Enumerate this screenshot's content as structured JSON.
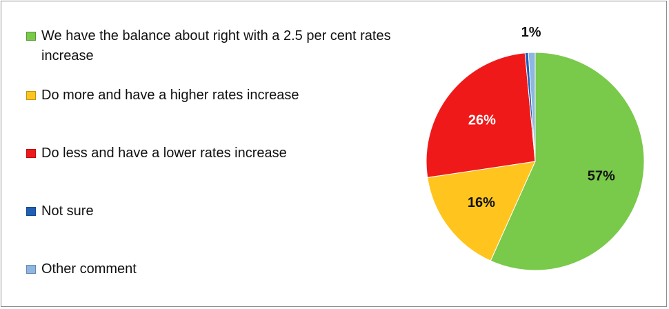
{
  "chart_data": {
    "type": "pie",
    "title": "",
    "legend_position": "left",
    "slices": [
      {
        "label": "We have the balance about right with a 2.5 per cent rates increase",
        "value": 57,
        "value_label": "57%",
        "color": "#79C94A",
        "label_color": "#111111"
      },
      {
        "label": "Do more and have a higher rates increase",
        "value": 16,
        "value_label": "16%",
        "color": "#FFC51E",
        "label_color": "#111111"
      },
      {
        "label": "Do less and have a lower rates increase",
        "value": 26,
        "value_label": "26%",
        "color": "#F01919",
        "label_color": "#ffffff"
      },
      {
        "label": "Not sure",
        "value": 0.5,
        "value_label": "",
        "color": "#1F5FB4",
        "label_color": "#111111"
      },
      {
        "label": "Other comment",
        "value": 1,
        "value_label": "1%",
        "color": "#8DB6E3",
        "label_color": "#111111"
      }
    ]
  }
}
